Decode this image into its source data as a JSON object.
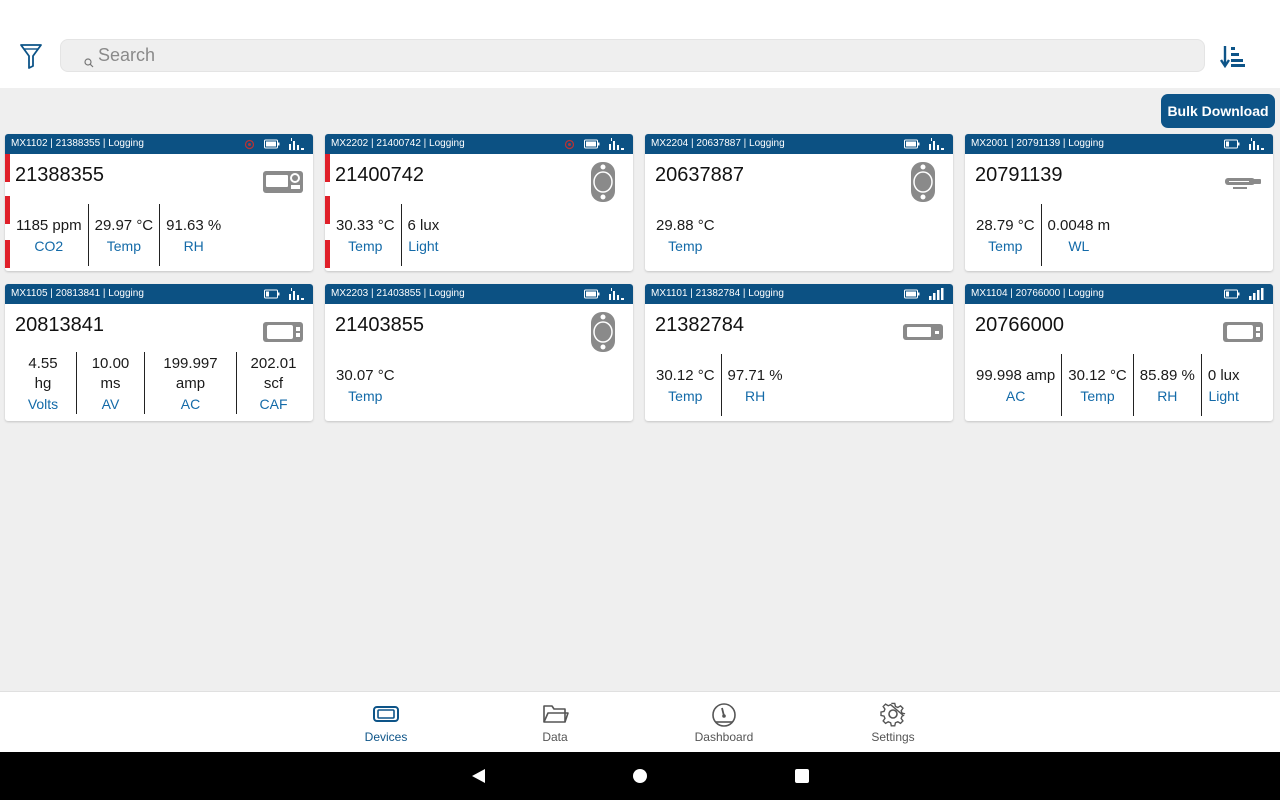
{
  "search": {
    "placeholder": "Search",
    "value": ""
  },
  "toolbar": {
    "bulk_download_label": "Bulk Download"
  },
  "devices": [
    {
      "header": "MX1102 | 21388355 | Logging",
      "serial": "21388355",
      "icon": "co2-logger-icon",
      "alarm": true,
      "readings": [
        {
          "value": "1185 ppm",
          "label": "CO2"
        },
        {
          "value": "29.97 °C",
          "label": "Temp"
        },
        {
          "value": "91.63 %",
          "label": "RH"
        }
      ]
    },
    {
      "header": "MX2202 | 21400742 | Logging",
      "serial": "21400742",
      "icon": "pendant-logger-icon",
      "alarm": true,
      "readings": [
        {
          "value": "30.33 °C",
          "label": "Temp"
        },
        {
          "value": "6 lux",
          "label": "Light"
        }
      ]
    },
    {
      "header": "MX2204 | 20637887 | Logging",
      "serial": "20637887",
      "icon": "pendant-logger-icon",
      "alarm": false,
      "readings": [
        {
          "value": "29.88 °C",
          "label": "Temp"
        }
      ]
    },
    {
      "header": "MX2001 | 20791139 | Logging",
      "serial": "20791139",
      "icon": "water-level-logger-icon",
      "alarm": false,
      "readings": [
        {
          "value": "28.79 °C",
          "label": "Temp"
        },
        {
          "value": "0.0048 m",
          "label": "WL"
        }
      ]
    },
    {
      "header": "MX1105 | 20813841 | Logging",
      "serial": "20813841",
      "icon": "analog-logger-icon",
      "alarm": false,
      "readings": [
        {
          "value": "4.55 hg",
          "label": "Volts"
        },
        {
          "value": "10.00 ms",
          "label": "AV"
        },
        {
          "value": "199.997 amp",
          "label": "AC"
        },
        {
          "value": "202.01 scf",
          "label": "CAF"
        }
      ]
    },
    {
      "header": "MX2203 | 21403855 | Logging",
      "serial": "21403855",
      "icon": "pendant-logger-icon",
      "alarm": false,
      "readings": [
        {
          "value": "30.07 °C",
          "label": "Temp"
        }
      ]
    },
    {
      "header": "MX1101 | 21382784 | Logging",
      "serial": "21382784",
      "icon": "temp-rh-logger-icon",
      "alarm": false,
      "readings": [
        {
          "value": "30.12 °C",
          "label": "Temp"
        },
        {
          "value": "97.71 %",
          "label": "RH"
        }
      ]
    },
    {
      "header": "MX1104 | 20766000 | Logging",
      "serial": "20766000",
      "icon": "analog-logger-icon",
      "alarm": false,
      "readings": [
        {
          "value": "99.998 amp",
          "label": "AC"
        },
        {
          "value": "30.12 °C",
          "label": "Temp"
        },
        {
          "value": "85.89 %",
          "label": "RH"
        },
        {
          "value": "0 lux",
          "label": "Light"
        }
      ]
    }
  ],
  "nav": [
    {
      "label": "Devices",
      "icon": "devices-icon",
      "active": true
    },
    {
      "label": "Data",
      "icon": "folder-icon",
      "active": false
    },
    {
      "label": "Dashboard",
      "icon": "dashboard-icon",
      "active": false
    },
    {
      "label": "Settings",
      "icon": "gear-icon",
      "active": false
    }
  ],
  "colors": {
    "header_blue": "#0c5183",
    "accent": "#0d5488",
    "label_blue": "#136aa8",
    "alarm_red": "#e0202a"
  }
}
